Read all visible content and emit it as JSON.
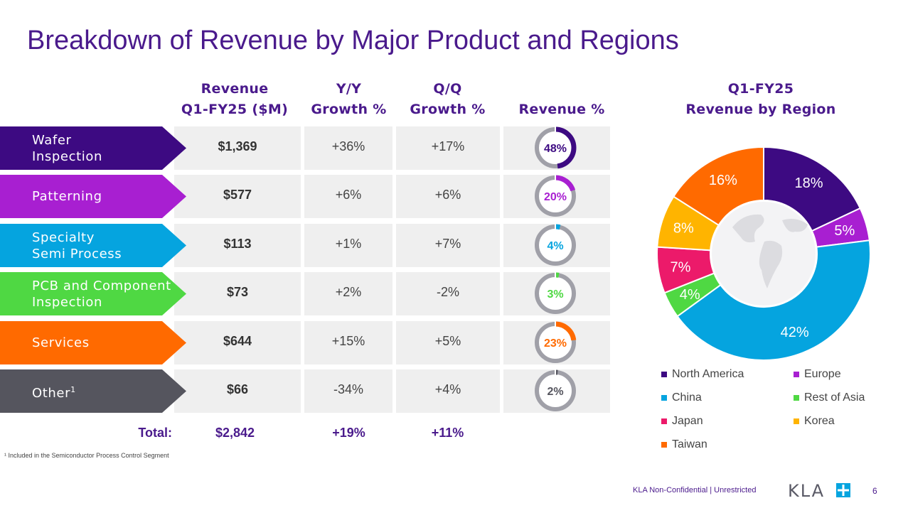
{
  "title": "Breakdown of Revenue by Major Product and Regions",
  "table": {
    "headers": {
      "revenue_line1": "Revenue",
      "revenue_line2": "Q1-FY25 ($M)",
      "yy_line1": "Y/Y",
      "yy_line2": "Growth %",
      "qq_line1": "Q/Q",
      "qq_line2": "Growth %",
      "pct": "Revenue %"
    },
    "rows": [
      {
        "label_l1": "Wafer",
        "label_l2": "Inspection",
        "revenue": "$1,369",
        "yy": "+36%",
        "qq": "+17%",
        "pct_label": "48%",
        "pct": 48,
        "color": "#3d0a82"
      },
      {
        "label_l1": "Patterning",
        "label_l2": "",
        "revenue": "$577",
        "yy": "+6%",
        "qq": "+6%",
        "pct_label": "20%",
        "pct": 20,
        "color": "#a81fd1"
      },
      {
        "label_l1": "Specialty",
        "label_l2": "Semi Process",
        "revenue": "$113",
        "yy": "+1%",
        "qq": "+7%",
        "pct_label": "4%",
        "pct": 4,
        "color": "#05a4df"
      },
      {
        "label_l1": "PCB and Component",
        "label_l2": "Inspection",
        "revenue": "$73",
        "yy": "+2%",
        "qq": "-2%",
        "pct_label": "3%",
        "pct": 3,
        "color": "#4fd843"
      },
      {
        "label_l1": "Services",
        "label_l2": "",
        "revenue": "$644",
        "yy": "+15%",
        "qq": "+5%",
        "pct_label": "23%",
        "pct": 23,
        "color": "#ff6a00"
      },
      {
        "label_l1": "Other",
        "label_l2": "",
        "label_sup": "1",
        "revenue": "$66",
        "yy": "-34%",
        "qq": "+4%",
        "pct_label": "2%",
        "pct": 2,
        "color": "#55555e"
      }
    ],
    "total": {
      "label": "Total:",
      "revenue": "$2,842",
      "yy": "+19%",
      "qq": "+11%"
    }
  },
  "region_chart_title_l1": "Q1-FY25",
  "region_chart_title_l2": "Revenue by Region",
  "chart_data": {
    "type": "pie",
    "title": "Q1-FY25 Revenue by Region",
    "slices": [
      {
        "name": "North America",
        "value": 18,
        "label": "18%",
        "color": "#3d0a82"
      },
      {
        "name": "Europe",
        "value": 5,
        "label": "5%",
        "color": "#a81fd1"
      },
      {
        "name": "China",
        "value": 42,
        "label": "42%",
        "color": "#05a4df"
      },
      {
        "name": "Rest of Asia",
        "value": 4,
        "label": "4%",
        "color": "#4fd843"
      },
      {
        "name": "Japan",
        "value": 7,
        "label": "7%",
        "color": "#ec1a6a"
      },
      {
        "name": "Korea",
        "value": 8,
        "label": "8%",
        "color": "#ffb400"
      },
      {
        "name": "Taiwan",
        "value": 16,
        "label": "16%",
        "color": "#ff6a00"
      }
    ],
    "legend": [
      "North America",
      "Europe",
      "China",
      "Rest of Asia",
      "Japan",
      "Korea",
      "Taiwan"
    ]
  },
  "footnote": "¹ Included in the Semiconductor Process Control Segment",
  "footer_text": "KLA Non-Confidential | Unrestricted",
  "logo_text": "KLA",
  "page_number": "6"
}
